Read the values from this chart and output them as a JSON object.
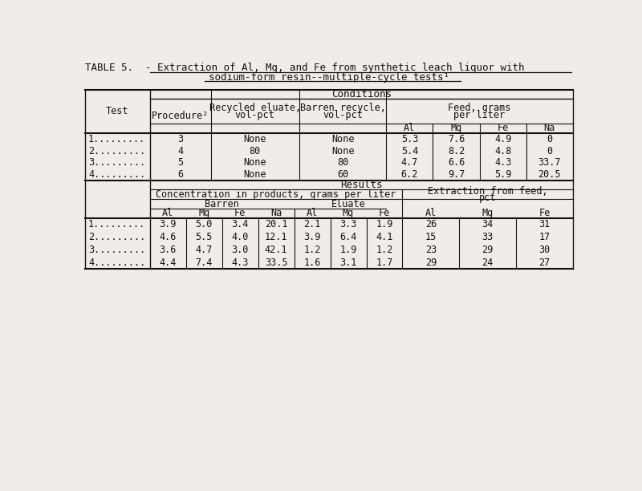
{
  "title_line1": "TABLE 5.  - Extraction of Al, Mg, and Fe from synthetic leach liquor with",
  "title_line2": "sodium-form resin--multiple-cycle tests¹",
  "test_labels": [
    "1.........",
    "2.........",
    "3.........",
    "4........."
  ],
  "conditions": {
    "procedure": [
      "3",
      "4",
      "5",
      "6"
    ],
    "recycled_eluate": [
      "None",
      "80",
      "None",
      "None"
    ],
    "barren_recycle": [
      "None",
      "None",
      "80",
      "60"
    ],
    "feed_Al": [
      "5.3",
      "5.4",
      "4.7",
      "6.2"
    ],
    "feed_Mg": [
      "7.6",
      "8.2",
      "6.6",
      "9.7"
    ],
    "feed_Fe": [
      "4.9",
      "4.8",
      "4.3",
      "5.9"
    ],
    "feed_Na": [
      "0",
      "0",
      "33.7",
      "20.5"
    ]
  },
  "results": {
    "barren_Al": [
      "3.9",
      "4.6",
      "3.6",
      "4.4"
    ],
    "barren_Mg": [
      "5.0",
      "5.5",
      "4.7",
      "7.4"
    ],
    "barren_Fe": [
      "3.4",
      "4.0",
      "3.0",
      "4.3"
    ],
    "barren_Na": [
      "20.1",
      "12.1",
      "42.1",
      "33.5"
    ],
    "eluate_Al": [
      "2.1",
      "3.9",
      "1.2",
      "1.6"
    ],
    "eluate_Mg": [
      "3.3",
      "6.4",
      "1.9",
      "3.1"
    ],
    "eluate_Fe": [
      "1.9",
      "4.1",
      "1.2",
      "1.7"
    ],
    "extract_Al": [
      "26",
      "15",
      "23",
      "29"
    ],
    "extract_Mg": [
      "34",
      "33",
      "29",
      "24"
    ],
    "extract_Fe": [
      "31",
      "17",
      "30",
      "27"
    ]
  },
  "bg_color": "#f0ede8",
  "text_color": "#111111",
  "font_size": 8.5,
  "title_font_size": 9.0
}
